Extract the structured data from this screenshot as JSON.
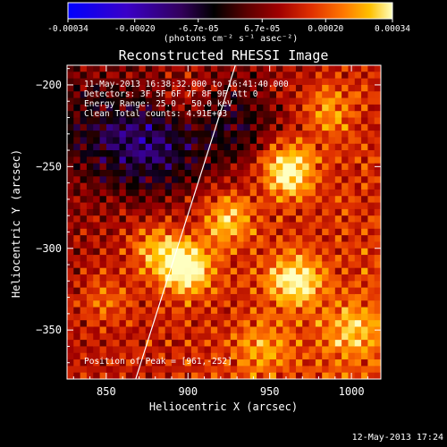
{
  "chart_data": {
    "type": "heatmap",
    "title": "Reconstructed RHESSI Image",
    "xlabel": "Heliocentric X (arcsec)",
    "ylabel": "Heliocentric Y (arcsec)",
    "xlim": [
      826,
      1018
    ],
    "ylim": [
      -380,
      -188
    ],
    "x_ticks": [
      850,
      900,
      950,
      1000
    ],
    "x_tick_labels": [
      "850",
      "900",
      "950",
      "1000"
    ],
    "y_ticks": [
      -200,
      -250,
      -300,
      -350
    ],
    "y_tick_labels": [
      "-200",
      "-250",
      "-300",
      "-350"
    ],
    "colorbar": {
      "range": [
        -0.00034,
        0.00034
      ],
      "tick_values": [
        -0.00034,
        -0.0002,
        -6.7e-05,
        6.7e-05,
        0.0002,
        0.00034
      ],
      "tick_labels": [
        "-0.00034",
        "-0.00020",
        "-6.7e-05",
        "6.7e-05",
        "0.00020",
        "0.00034"
      ],
      "units_label": "(photons cm⁻² s⁻¹ asec⁻²)",
      "colormap": [
        "#0000ff",
        "#3a00c8",
        "#32005a",
        "#000000",
        "#5a0000",
        "#a00000",
        "#e03000",
        "#ff7800",
        "#ffc000",
        "#ffffc0"
      ]
    },
    "annotations": {
      "time_range": "11-May-2013 16:38:32.000 to 16:41:40.000",
      "detectors": "Detectors: 3F 5F 6F 7F 8F 9F Att 0",
      "energy_range": "Energy Range: 25.0 - 50.0 keV",
      "method_and_counts": "Clean    Total counts: 4.91E+03",
      "peak_position": "Position of Peak = [961,-252]"
    },
    "peak": [
      961,
      -252
    ],
    "limb_line": [
      [
        868,
        -380
      ],
      [
        929,
        -188
      ]
    ],
    "sources": [
      {
        "x": 899,
        "y": -312,
        "amplitude": 1.0
      },
      {
        "x": 961,
        "y": -252,
        "amplitude": 0.95
      },
      {
        "x": 965,
        "y": -320,
        "amplitude": 0.8
      },
      {
        "x": 925,
        "y": -282,
        "amplitude": 0.6
      },
      {
        "x": 880,
        "y": -300,
        "amplitude": 0.5
      },
      {
        "x": 985,
        "y": -215,
        "amplitude": 0.45
      },
      {
        "x": 1000,
        "y": -350,
        "amplitude": 0.45
      },
      {
        "x": 945,
        "y": -360,
        "amplitude": 0.4
      },
      {
        "x": 850,
        "y": -330,
        "amplitude": 0.35
      },
      {
        "x": 900,
        "y": -210,
        "amplitude": 0.25
      }
    ],
    "negative_regions": [
      {
        "x": 880,
        "y": -240,
        "amplitude": -0.6
      },
      {
        "x": 930,
        "y": -225,
        "amplitude": -0.45
      },
      {
        "x": 845,
        "y": -230,
        "amplitude": -0.35
      }
    ]
  },
  "footer": {
    "timestamp": "12-May-2013 17:24"
  }
}
